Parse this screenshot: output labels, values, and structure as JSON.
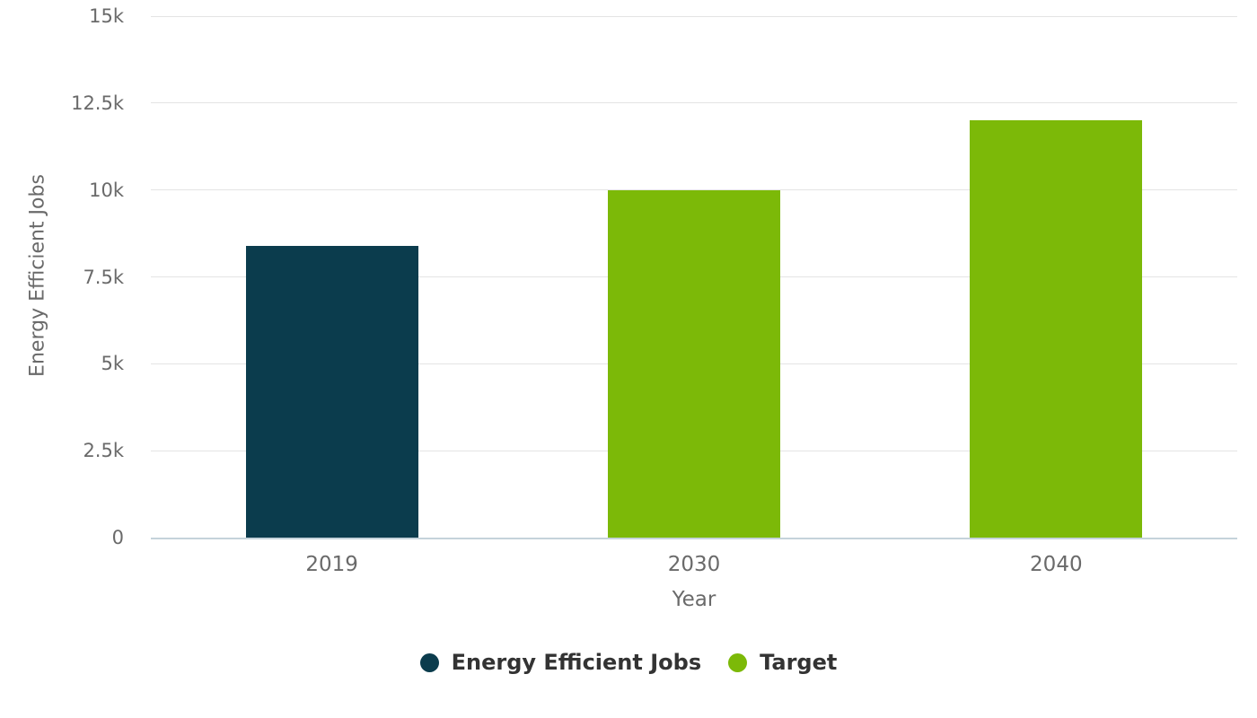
{
  "chart_data": {
    "type": "bar",
    "xlabel": "Year",
    "ylabel": "Energy Efficient Jobs",
    "ylim": [
      0,
      15000
    ],
    "grid": true,
    "legend_position": "bottom",
    "yticks": [
      {
        "label": "0",
        "value": 0
      },
      {
        "label": "2.5k",
        "value": 2500
      },
      {
        "label": "5k",
        "value": 5000
      },
      {
        "label": "7.5k",
        "value": 7500
      },
      {
        "label": "10k",
        "value": 10000
      },
      {
        "label": "12.5k",
        "value": 12500
      },
      {
        "label": "15k",
        "value": 15000
      }
    ],
    "categories": [
      "2019",
      "2030",
      "2040"
    ],
    "bars": [
      {
        "category": "2019",
        "series": "Energy Efficient Jobs",
        "value": 8400,
        "color": "#0B3C4D"
      },
      {
        "category": "2030",
        "series": "Target",
        "value": 10000,
        "color": "#7CB908"
      },
      {
        "category": "2040",
        "series": "Target",
        "value": 12000,
        "color": "#7CB908"
      }
    ],
    "legend": [
      {
        "label": "Energy Efficient Jobs",
        "color": "#0B3C4D"
      },
      {
        "label": "Target",
        "color": "#7CB908"
      }
    ],
    "colors": {
      "grid": "#E4E4E4",
      "baseline": "#C5D3DB",
      "axis_text": "#6A6A6A",
      "legend_text": "#333333",
      "background": "#FFFFFF"
    }
  }
}
